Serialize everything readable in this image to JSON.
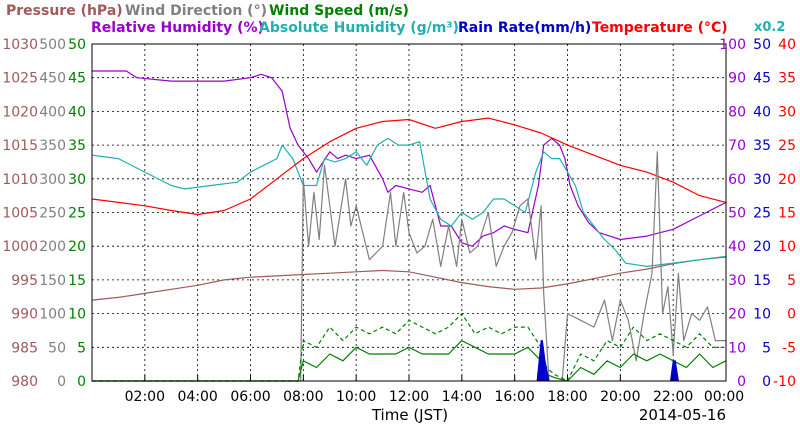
{
  "chart_data": {
    "type": "line",
    "date_label": "2014-05-16",
    "xlabel": "Time (JST)",
    "x_ticks": [
      "02:00",
      "04:00",
      "06:00",
      "08:00",
      "10:00",
      "12:00",
      "14:00",
      "16:00",
      "18:00",
      "20:00",
      "22:00",
      "00:00"
    ],
    "x_range_hours": [
      0,
      24
    ],
    "grid": true,
    "scale_note": "x0.2",
    "legend_row1": [
      {
        "text": "Pressure (hPa)",
        "color": "#a05a5a"
      },
      {
        "text": "Wind Direction (°)",
        "color": "#808080"
      },
      {
        "text": "Wind Speed (m/s)",
        "color": "#008000"
      }
    ],
    "legend_row2": [
      {
        "text": "Relative Humidity (%)",
        "color": "#9900cc"
      },
      {
        "text": "Absolute Humidity (g/m³)",
        "color": "#20b0b0"
      },
      {
        "text": "Rain Rate(mm/h)",
        "color": "#0000cc"
      },
      {
        "text": "Temperature (°C)",
        "color": "#ff0000"
      }
    ],
    "axes": [
      {
        "name": "Pressure",
        "color": "#a05a5a",
        "min": 980,
        "max": 1030,
        "ticks": [
          "980",
          "985",
          "990",
          "995",
          "1000",
          "1005",
          "1010",
          "1015",
          "1020",
          "1025",
          "1030"
        ]
      },
      {
        "name": "Wind Direction",
        "color": "#808080",
        "min": 0,
        "max": 500,
        "ticks": [
          "0",
          "50",
          "100",
          "150",
          "200",
          "250",
          "300",
          "350",
          "400",
          "450",
          "500"
        ]
      },
      {
        "name": "Wind Speed",
        "color": "#008000",
        "min": 0,
        "max": 50,
        "ticks": [
          "0",
          "5",
          "10",
          "15",
          "20",
          "25",
          "30",
          "35",
          "40",
          "45",
          "50"
        ]
      },
      {
        "name": "Relative Humidity",
        "color": "#9900cc",
        "min": 0,
        "max": 100,
        "ticks": [
          "0",
          "10",
          "20",
          "30",
          "40",
          "50",
          "60",
          "70",
          "80",
          "90",
          "100"
        ]
      },
      {
        "name": "Rain Rate",
        "color": "#0000cc",
        "min": 0,
        "max": 50,
        "ticks": [
          "0",
          "5",
          "10",
          "15",
          "20",
          "25",
          "30",
          "35",
          "40",
          "45",
          "50"
        ]
      },
      {
        "name": "Temperature",
        "color": "#ff0000",
        "min": -10,
        "max": 40,
        "ticks": [
          "-10",
          "-5",
          "0",
          "5",
          "10",
          "15",
          "20",
          "25",
          "30",
          "35",
          "40"
        ]
      }
    ],
    "series": [
      {
        "name": "Pressure (hPa)",
        "axis": 0,
        "color": "#a05a5a",
        "style": "solid",
        "x": [
          0,
          1,
          2,
          3,
          4,
          5,
          6,
          7,
          8,
          9,
          10,
          11,
          12,
          13,
          14,
          15,
          16,
          17,
          18,
          19,
          20,
          21,
          22,
          23,
          24
        ],
        "values": [
          992,
          992.4,
          993,
          993.6,
          994.2,
          995,
          995.4,
          995.6,
          995.8,
          996,
          996.2,
          996.4,
          996.2,
          995.4,
          994.6,
          994,
          993.6,
          993.8,
          994.4,
          995.2,
          996,
          996.6,
          997.4,
          998,
          998.4
        ]
      },
      {
        "name": "Relative Humidity (%)",
        "axis": 3,
        "color": "#9900cc",
        "style": "solid",
        "x": [
          0,
          1.3,
          1.7,
          3,
          5,
          6,
          6.4,
          6.8,
          7.2,
          7.5,
          7.8,
          8.2,
          8.5,
          9,
          9.3,
          9.6,
          10,
          10.5,
          11,
          11.2,
          11.5,
          12,
          12.5,
          12.8,
          13,
          13.2,
          13.6,
          14,
          14.4,
          14.8,
          15.2,
          15.6,
          16,
          16.5,
          16.9,
          17.1,
          17.4,
          17.7,
          17.9,
          18.1,
          18.4,
          18.8,
          19.2,
          19.6,
          20,
          21,
          22,
          23,
          24
        ],
        "values": [
          92,
          92,
          90,
          89,
          89,
          90,
          91,
          90,
          86,
          75,
          70,
          66,
          62,
          68,
          66,
          67,
          66,
          67,
          60,
          56,
          58,
          57,
          56,
          58,
          52,
          46,
          46,
          41,
          40,
          43,
          44,
          46,
          45,
          44,
          58,
          70,
          72,
          70,
          66,
          58,
          52,
          47,
          44,
          43,
          42,
          43,
          45,
          49,
          53
        ]
      },
      {
        "name": "Absolute Humidity (g/m3)",
        "axis": 4,
        "color": "#20b0b0",
        "style": "solid",
        "x": [
          0,
          1,
          2,
          3,
          3.5,
          4.5,
          5.5,
          6,
          6.5,
          7,
          7.2,
          7.6,
          8,
          8.5,
          8.8,
          9.2,
          9.6,
          10,
          10.4,
          10.8,
          11.2,
          11.6,
          12,
          12.4,
          12.8,
          13.2,
          13.6,
          14,
          14.4,
          14.8,
          15.2,
          15.6,
          16,
          16.4,
          16.8,
          17.1,
          17.4,
          17.7,
          18,
          18.3,
          18.6,
          19,
          19.4,
          19.8,
          20.2,
          21,
          22,
          23,
          24
        ],
        "values": [
          33.5,
          33,
          31,
          29,
          28.5,
          29,
          29.5,
          31,
          32,
          33,
          35,
          33,
          29,
          29,
          33,
          32.5,
          33,
          34,
          32,
          35,
          36,
          35,
          35,
          35.5,
          27,
          24,
          23,
          25,
          24,
          25,
          27,
          27,
          26,
          25,
          31,
          34,
          33,
          33,
          31,
          29,
          25,
          23,
          21,
          19.5,
          17.5,
          17,
          17.5,
          18,
          18.5
        ]
      },
      {
        "name": "Temperature (°C)",
        "axis": 5,
        "color": "#ff0000",
        "style": "solid",
        "x": [
          0,
          1,
          2,
          3,
          4,
          5,
          6,
          7,
          8,
          9,
          10,
          11,
          12,
          13,
          14,
          15,
          16,
          17,
          18,
          19,
          20,
          21,
          22,
          23,
          24
        ],
        "values": [
          17,
          16.5,
          16,
          15.3,
          14.7,
          15.3,
          17,
          20,
          23,
          25.5,
          27.5,
          28.5,
          28.8,
          27.5,
          28.5,
          29,
          28,
          26.8,
          25,
          23.5,
          22,
          21,
          19.5,
          17.5,
          16.5
        ]
      },
      {
        "name": "Wind Direction (°)",
        "axis": 1,
        "color": "#808080",
        "style": "solid",
        "x": [
          0,
          7.9,
          8,
          8.2,
          8.4,
          8.6,
          8.8,
          9,
          9.2,
          9.4,
          9.6,
          9.8,
          10,
          10.5,
          11,
          11.3,
          11.5,
          11.8,
          12,
          12.3,
          12.6,
          12.9,
          13.2,
          13.5,
          13.8,
          14,
          14.3,
          14.6,
          15,
          15.3,
          15.6,
          15.9,
          16.2,
          16.5,
          16.8,
          17,
          17.1,
          17.3,
          17.6,
          17.8,
          18,
          18.5,
          19,
          19.4,
          19.7,
          20,
          20.3,
          20.6,
          20.9,
          21.2,
          21.4,
          21.6,
          21.8,
          22,
          22.2,
          22.4,
          22.7,
          23,
          23.3,
          23.6,
          24
        ],
        "values": [
          0,
          0,
          300,
          200,
          280,
          210,
          320,
          260,
          200,
          250,
          300,
          230,
          260,
          180,
          200,
          280,
          200,
          280,
          220,
          190,
          200,
          240,
          170,
          230,
          170,
          240,
          190,
          200,
          250,
          170,
          200,
          220,
          260,
          270,
          180,
          260,
          130,
          0,
          0,
          0,
          100,
          90,
          80,
          120,
          60,
          120,
          90,
          30,
          100,
          160,
          340,
          100,
          140,
          40,
          160,
          60,
          100,
          90,
          110,
          60,
          60
        ]
      },
      {
        "name": "Wind Speed solid",
        "axis": 2,
        "color": "#008000",
        "style": "solid",
        "x": [
          0,
          7.8,
          8,
          8.5,
          9,
          9.5,
          10,
          10.5,
          11,
          11.5,
          12,
          12.5,
          13,
          13.5,
          14,
          14.5,
          15,
          15.5,
          16,
          16.5,
          17,
          17.2,
          17.5,
          18,
          18.5,
          19,
          19.5,
          20,
          20.5,
          21,
          21.5,
          22,
          22.5,
          23,
          23.5,
          24
        ],
        "values": [
          0,
          0,
          3,
          2,
          4,
          3,
          5,
          4,
          4,
          4,
          5,
          4,
          4,
          4,
          6,
          5,
          4,
          4,
          4,
          5,
          3,
          1,
          0.5,
          0,
          2,
          1,
          3,
          2,
          4,
          3,
          4,
          3,
          2,
          4,
          2,
          3
        ]
      },
      {
        "name": "Wind Speed dashed",
        "axis": 2,
        "color": "#008000",
        "style": "dashed",
        "x": [
          0,
          7.8,
          8,
          8.5,
          9,
          9.5,
          10,
          10.5,
          11,
          11.5,
          12,
          12.5,
          13,
          13.5,
          14,
          14.5,
          15,
          15.5,
          16,
          16.5,
          17,
          17.2,
          17.5,
          18,
          18.5,
          19,
          19.5,
          20,
          20.5,
          21,
          21.5,
          22,
          22.5,
          23,
          23.5,
          24
        ],
        "values": [
          0,
          0,
          6,
          5,
          8,
          6,
          8,
          7,
          8,
          7,
          9,
          8,
          7,
          8,
          10,
          7,
          8,
          7,
          8,
          8,
          5,
          2,
          1,
          0,
          4,
          3,
          6,
          5,
          8,
          6,
          7,
          6,
          5,
          7,
          5,
          5
        ]
      },
      {
        "name": "Rain Rate(mm/h)",
        "axis": 4,
        "color": "#0000cc",
        "style": "fill",
        "x": [
          0,
          16.85,
          17,
          17.05,
          17.15,
          17.3,
          21.9,
          22,
          22.08,
          22.2,
          24
        ],
        "values": [
          0,
          0,
          6,
          6,
          3,
          0,
          0,
          3,
          3,
          0,
          0
        ]
      }
    ]
  }
}
